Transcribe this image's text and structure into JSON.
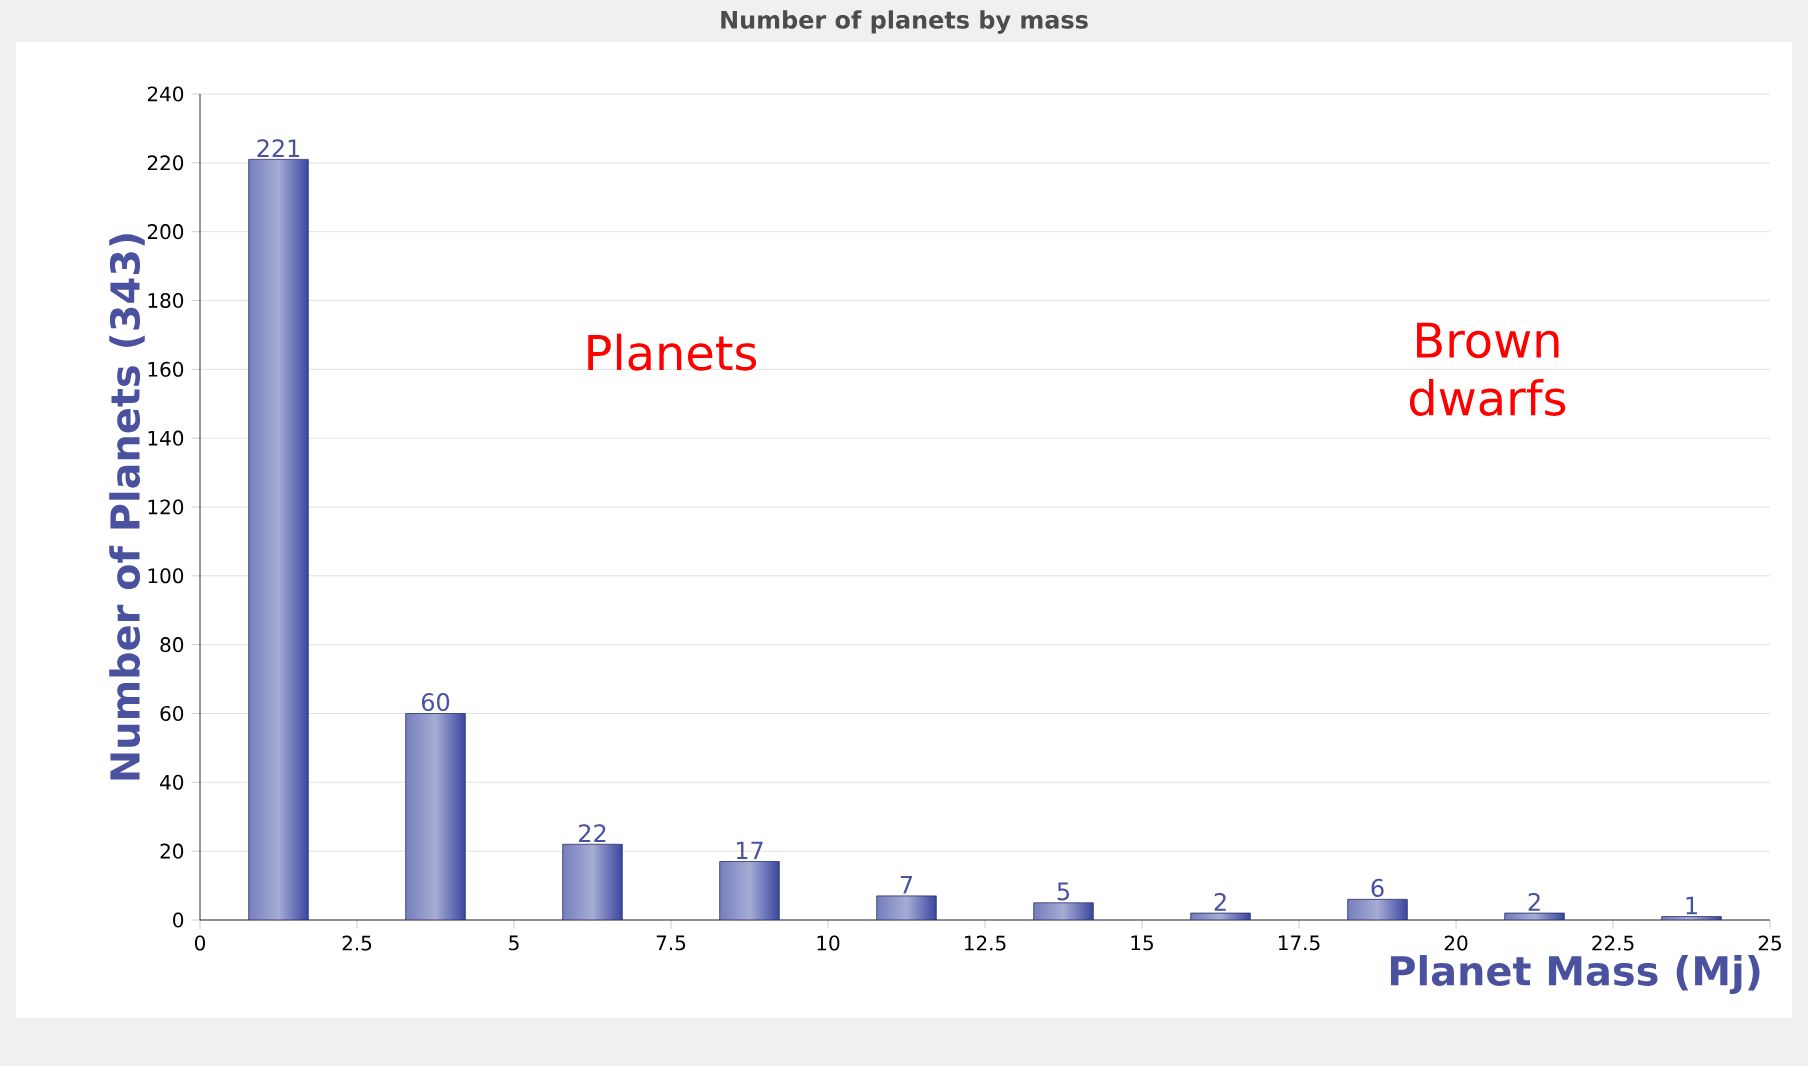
{
  "chart_data": {
    "type": "histogram",
    "title": "Number of planets by mass",
    "xlabel": "Planet Mass (Mj)",
    "ylabel": "Number of Planets (343)",
    "bins": [
      0,
      2.5,
      5,
      7.5,
      10,
      12.5,
      15,
      17.5,
      20,
      22.5,
      25
    ],
    "values": [
      221,
      60,
      22,
      17,
      7,
      5,
      2,
      6,
      2,
      1
    ],
    "color": "#3a46a0",
    "xlim": [
      0,
      25
    ],
    "ylim": [
      0,
      240
    ],
    "xticks": [
      0,
      2.5,
      5,
      7.5,
      10,
      12.5,
      15,
      17.5,
      20,
      22.5,
      25
    ],
    "yticks": [
      0,
      20,
      40,
      60,
      80,
      100,
      120,
      140,
      160,
      180,
      200,
      220,
      240
    ],
    "grid": "y",
    "data_labels": true,
    "annotations": [
      "Planets",
      "Brown dwarfs"
    ]
  }
}
